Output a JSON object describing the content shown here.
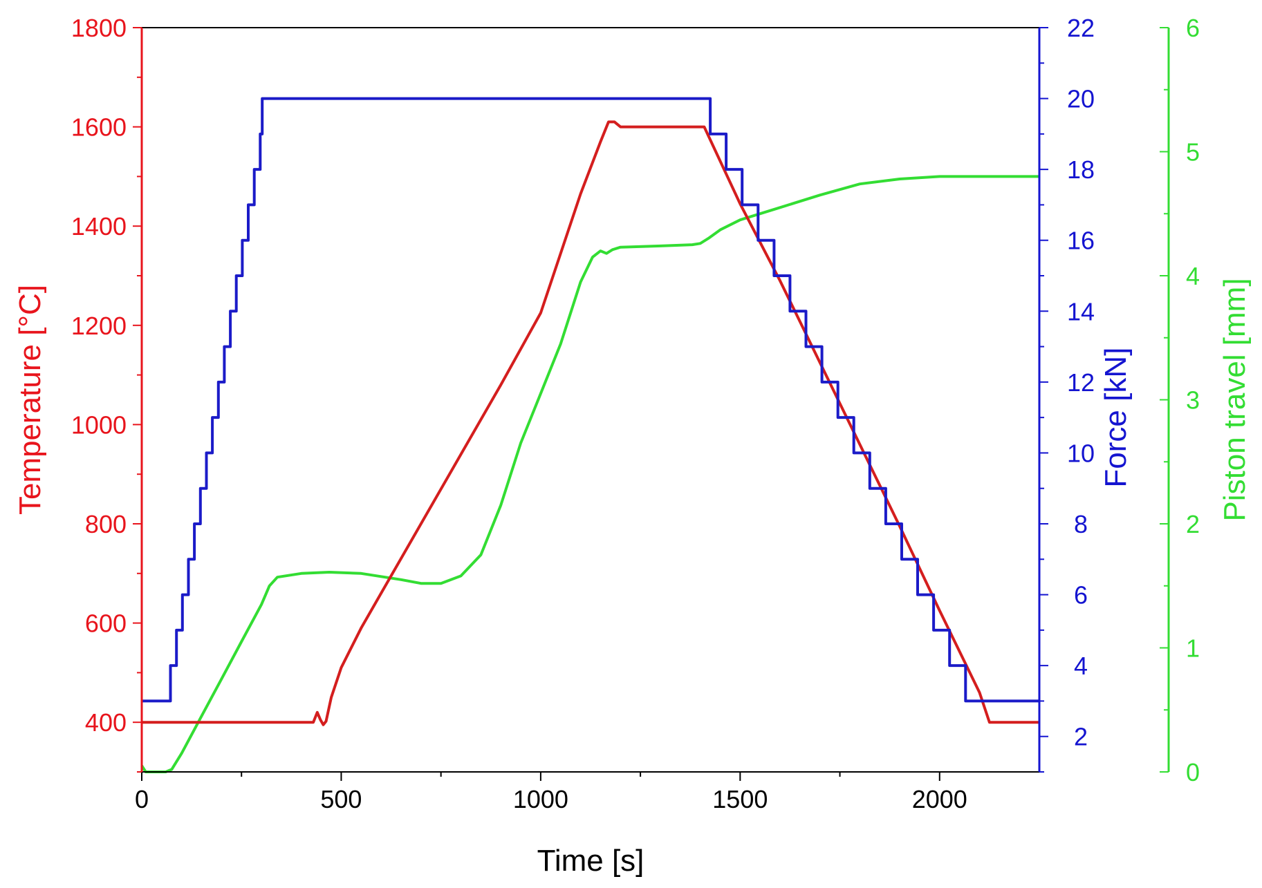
{
  "chart_data": {
    "type": "line",
    "title": "",
    "xlabel": "Time [s]",
    "xlim": [
      0,
      2250
    ],
    "xticks": [
      0,
      500,
      1000,
      1500,
      2000
    ],
    "x_tick_labels": [
      "0",
      "500",
      "1000",
      "1500",
      "2000"
    ],
    "axes": {
      "temperature": {
        "label": "Temperature [°C]",
        "side": "left",
        "range": [
          300,
          1800
        ],
        "ticks": [
          400,
          600,
          800,
          1000,
          1200,
          1400,
          1600,
          1800
        ],
        "tick_labels": [
          "400",
          "600",
          "800",
          "1000",
          "1200",
          "1400",
          "1600",
          "1800"
        ],
        "color": "#e8141c"
      },
      "force": {
        "label": "Force [kN]",
        "side": "right",
        "range": [
          1,
          22
        ],
        "ticks": [
          2,
          4,
          6,
          8,
          10,
          12,
          14,
          16,
          18,
          20,
          22
        ],
        "tick_labels": [
          "2",
          "4",
          "6",
          "8",
          "10",
          "12",
          "14",
          "16",
          "18",
          "20",
          "22"
        ],
        "color": "#1414d0"
      },
      "piston": {
        "label": "Piston travel [mm]",
        "side": "right-offset",
        "range": [
          0,
          6
        ],
        "ticks": [
          0,
          1,
          2,
          3,
          4,
          5,
          6
        ],
        "tick_labels": [
          "0",
          "1",
          "2",
          "3",
          "4",
          "5",
          "6"
        ],
        "color": "#33dd33"
      }
    },
    "series": [
      {
        "name": "Temperature",
        "axis": "temperature",
        "color": "#d41e1e",
        "points": [
          [
            0,
            400
          ],
          [
            430,
            400
          ],
          [
            440,
            420
          ],
          [
            448,
            405
          ],
          [
            455,
            395
          ],
          [
            462,
            402
          ],
          [
            475,
            450
          ],
          [
            500,
            510
          ],
          [
            550,
            590
          ],
          [
            600,
            660
          ],
          [
            700,
            800
          ],
          [
            800,
            940
          ],
          [
            900,
            1080
          ],
          [
            1000,
            1225
          ],
          [
            1100,
            1465
          ],
          [
            1150,
            1570
          ],
          [
            1170,
            1610
          ],
          [
            1185,
            1610
          ],
          [
            1200,
            1600
          ],
          [
            1410,
            1600
          ],
          [
            1500,
            1445
          ],
          [
            1600,
            1290
          ],
          [
            1700,
            1125
          ],
          [
            1800,
            960
          ],
          [
            1900,
            795
          ],
          [
            2000,
            625
          ],
          [
            2100,
            460
          ],
          [
            2125,
            400
          ],
          [
            2250,
            400
          ]
        ]
      },
      {
        "name": "Force",
        "axis": "force",
        "color": "#1b1bc8",
        "points": [
          [
            0,
            3
          ],
          [
            72,
            3
          ],
          [
            72,
            4
          ],
          [
            87,
            4
          ],
          [
            87,
            5
          ],
          [
            102,
            5
          ],
          [
            102,
            6
          ],
          [
            117,
            6
          ],
          [
            117,
            7
          ],
          [
            132,
            7
          ],
          [
            132,
            8
          ],
          [
            147,
            8
          ],
          [
            147,
            9
          ],
          [
            162,
            9
          ],
          [
            162,
            10
          ],
          [
            177,
            10
          ],
          [
            177,
            11
          ],
          [
            192,
            11
          ],
          [
            192,
            12
          ],
          [
            207,
            12
          ],
          [
            207,
            13
          ],
          [
            222,
            13
          ],
          [
            222,
            14
          ],
          [
            237,
            14
          ],
          [
            237,
            15
          ],
          [
            252,
            15
          ],
          [
            252,
            16
          ],
          [
            267,
            16
          ],
          [
            267,
            17
          ],
          [
            282,
            17
          ],
          [
            282,
            18
          ],
          [
            297,
            18
          ],
          [
            297,
            19
          ],
          [
            302,
            19
          ],
          [
            302,
            20
          ],
          [
            1425,
            20
          ],
          [
            1425,
            19
          ],
          [
            1465,
            19
          ],
          [
            1465,
            18
          ],
          [
            1505,
            18
          ],
          [
            1505,
            17
          ],
          [
            1545,
            17
          ],
          [
            1545,
            16
          ],
          [
            1585,
            16
          ],
          [
            1585,
            15
          ],
          [
            1625,
            15
          ],
          [
            1625,
            14
          ],
          [
            1665,
            14
          ],
          [
            1665,
            13
          ],
          [
            1705,
            13
          ],
          [
            1705,
            12
          ],
          [
            1745,
            12
          ],
          [
            1745,
            11
          ],
          [
            1785,
            11
          ],
          [
            1785,
            10
          ],
          [
            1825,
            10
          ],
          [
            1825,
            9
          ],
          [
            1865,
            9
          ],
          [
            1865,
            8
          ],
          [
            1905,
            8
          ],
          [
            1905,
            7
          ],
          [
            1945,
            7
          ],
          [
            1945,
            6
          ],
          [
            1985,
            6
          ],
          [
            1985,
            5
          ],
          [
            2025,
            5
          ],
          [
            2025,
            4
          ],
          [
            2065,
            4
          ],
          [
            2065,
            3
          ],
          [
            2250,
            3
          ]
        ]
      },
      {
        "name": "Piston travel",
        "axis": "piston",
        "color": "#33dd33",
        "points": [
          [
            0,
            0.05
          ],
          [
            10,
            0
          ],
          [
            30,
            0
          ],
          [
            60,
            0
          ],
          [
            75,
            0.02
          ],
          [
            100,
            0.15
          ],
          [
            150,
            0.45
          ],
          [
            200,
            0.75
          ],
          [
            250,
            1.05
          ],
          [
            300,
            1.35
          ],
          [
            320,
            1.5
          ],
          [
            340,
            1.57
          ],
          [
            400,
            1.6
          ],
          [
            470,
            1.61
          ],
          [
            550,
            1.6
          ],
          [
            650,
            1.55
          ],
          [
            700,
            1.52
          ],
          [
            750,
            1.52
          ],
          [
            800,
            1.58
          ],
          [
            850,
            1.75
          ],
          [
            900,
            2.15
          ],
          [
            950,
            2.65
          ],
          [
            1000,
            3.05
          ],
          [
            1050,
            3.45
          ],
          [
            1100,
            3.95
          ],
          [
            1130,
            4.15
          ],
          [
            1150,
            4.2
          ],
          [
            1165,
            4.18
          ],
          [
            1180,
            4.21
          ],
          [
            1200,
            4.23
          ],
          [
            1300,
            4.24
          ],
          [
            1380,
            4.25
          ],
          [
            1400,
            4.26
          ],
          [
            1420,
            4.3
          ],
          [
            1450,
            4.37
          ],
          [
            1500,
            4.45
          ],
          [
            1600,
            4.55
          ],
          [
            1700,
            4.65
          ],
          [
            1800,
            4.74
          ],
          [
            1900,
            4.78
          ],
          [
            2000,
            4.8
          ],
          [
            2250,
            4.8
          ]
        ]
      }
    ]
  }
}
